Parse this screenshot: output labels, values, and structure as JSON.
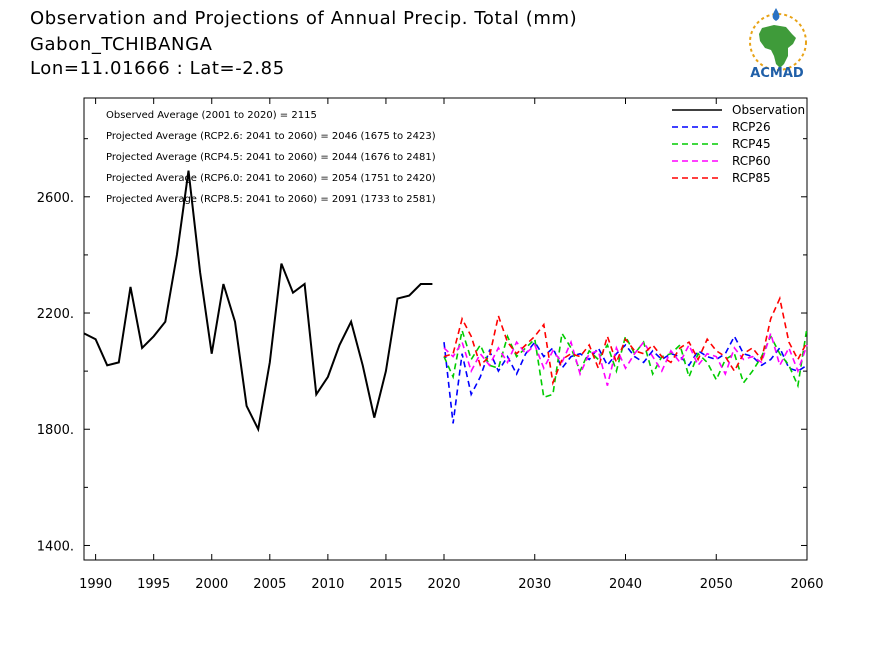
{
  "title": {
    "line1": "Observation and Projections of Annual Precip. Total (mm)",
    "line2": "Gabon_TCHIBANGA",
    "line3": "Lon=11.01666 : Lat=-2.85"
  },
  "logo": {
    "text": "ACMAD",
    "icon": "africa-map-logo-icon"
  },
  "annotations": [
    "Observed Average (2001 to 2020) = 2115",
    "Projected Average (RCP2.6: 2041 to 2060) = 2046 (1675 to 2423)",
    "Projected Average (RCP4.5: 2041 to 2060) = 2044 (1676 to 2481)",
    "Projected Average (RCP6.0: 2041 to 2060) = 2054 (1751 to 2420)",
    "Projected Average (RCP8.5: 2041 to 2060) = 2091 (1733 to 2581)"
  ],
  "chart_data": {
    "type": "line",
    "xlim": [
      1989,
      2060
    ],
    "ylim": [
      1350,
      2940
    ],
    "x_ticks": [
      1990,
      1995,
      2000,
      2005,
      2010,
      2015,
      2020,
      2030,
      2040,
      2050,
      2060
    ],
    "y_ticks": [
      {
        "value": 1400,
        "label": "1400."
      },
      {
        "value": 1800,
        "label": "1800."
      },
      {
        "value": 2200,
        "label": "2200."
      },
      {
        "value": 2600,
        "label": "2600."
      }
    ],
    "y_minor_ticks": [
      1600,
      2000,
      2400,
      2800
    ],
    "legend_position": "top-right",
    "grid": false,
    "series": [
      {
        "name": "Observation",
        "color": "#000000",
        "dash": "solid",
        "x": [
          1989,
          1990,
          1991,
          1992,
          1993,
          1994,
          1995,
          1996,
          1997,
          1998,
          1999,
          2000,
          2001,
          2002,
          2003,
          2004,
          2005,
          2006,
          2007,
          2008,
          2009,
          2010,
          2011,
          2012,
          2013,
          2014,
          2015,
          2016,
          2017,
          2018,
          2019
        ],
        "values": [
          2130,
          2110,
          2020,
          2030,
          2290,
          2080,
          2120,
          2170,
          2400,
          2690,
          2340,
          2060,
          2300,
          2170,
          1880,
          1800,
          2030,
          2370,
          2270,
          2300,
          1920,
          1980,
          2090,
          2170,
          2020,
          1840,
          2000,
          2250,
          2260,
          2300,
          2300
        ]
      },
      {
        "name": "RCP26",
        "color": "#0000ff",
        "dash": "dashed",
        "x": [
          2020,
          2021,
          2022,
          2023,
          2024,
          2025,
          2026,
          2027,
          2028,
          2029,
          2030,
          2031,
          2032,
          2033,
          2034,
          2035,
          2036,
          2037,
          2038,
          2039,
          2040,
          2041,
          2042,
          2043,
          2044,
          2045,
          2046,
          2047,
          2048,
          2049,
          2050,
          2051,
          2052,
          2053,
          2054,
          2055,
          2056,
          2057,
          2058,
          2059,
          2060
        ],
        "values": [
          2100,
          1820,
          2060,
          1920,
          1980,
          2070,
          2000,
          2050,
          1990,
          2060,
          2100,
          2050,
          2080,
          2010,
          2050,
          2060,
          2040,
          2080,
          2020,
          2060,
          2090,
          2050,
          2030,
          2070,
          2040,
          2060,
          2050,
          2020,
          2070,
          2050,
          2040,
          2060,
          2120,
          2060,
          2050,
          2020,
          2040,
          2080,
          2010,
          2000,
          2020
        ]
      },
      {
        "name": "RCP45",
        "color": "#00cc00",
        "dash": "dashed",
        "x": [
          2020,
          2021,
          2022,
          2023,
          2024,
          2025,
          2026,
          2027,
          2028,
          2029,
          2030,
          2031,
          2032,
          2033,
          2034,
          2035,
          2036,
          2037,
          2038,
          2039,
          2040,
          2041,
          2042,
          2043,
          2044,
          2045,
          2046,
          2047,
          2048,
          2049,
          2050,
          2051,
          2052,
          2053,
          2054,
          2055,
          2056,
          2057,
          2058,
          2059,
          2060
        ],
        "values": [
          2050,
          1980,
          2140,
          2040,
          2090,
          2020,
          2010,
          2120,
          2050,
          2080,
          2110,
          1910,
          1920,
          2130,
          2080,
          2000,
          2070,
          2040,
          2090,
          2000,
          2120,
          2060,
          2100,
          1990,
          2050,
          2060,
          2090,
          1980,
          2060,
          2030,
          1970,
          2040,
          2060,
          1960,
          2000,
          2050,
          2120,
          2060,
          2020,
          1950,
          2150
        ]
      },
      {
        "name": "RCP60",
        "color": "#ff00ff",
        "dash": "dashed",
        "x": [
          2020,
          2021,
          2022,
          2023,
          2024,
          2025,
          2026,
          2027,
          2028,
          2029,
          2030,
          2031,
          2032,
          2033,
          2034,
          2035,
          2036,
          2037,
          2038,
          2039,
          2040,
          2041,
          2042,
          2043,
          2044,
          2045,
          2046,
          2047,
          2048,
          2049,
          2050,
          2051,
          2052,
          2053,
          2054,
          2055,
          2056,
          2057,
          2058,
          2059,
          2060
        ],
        "values": [
          2080,
          2050,
          2100,
          2000,
          2060,
          2020,
          2080,
          2030,
          2100,
          2060,
          2090,
          2010,
          2070,
          2030,
          2100,
          1990,
          2060,
          2070,
          1950,
          2080,
          2010,
          2060,
          2100,
          2050,
          2000,
          2070,
          2030,
          2090,
          2020,
          2060,
          2050,
          1990,
          2080,
          2040,
          2050,
          2030,
          2130,
          2020,
          2080,
          2000,
          2090
        ]
      },
      {
        "name": "RCP85",
        "color": "#ff0000",
        "dash": "dashed",
        "x": [
          2020,
          2021,
          2022,
          2023,
          2024,
          2025,
          2026,
          2027,
          2028,
          2029,
          2030,
          2031,
          2032,
          2033,
          2034,
          2035,
          2036,
          2037,
          2038,
          2039,
          2040,
          2041,
          2042,
          2043,
          2044,
          2045,
          2046,
          2047,
          2048,
          2049,
          2050,
          2051,
          2052,
          2053,
          2054,
          2055,
          2056,
          2057,
          2058,
          2059,
          2060
        ],
        "values": [
          2050,
          2060,
          2180,
          2120,
          2020,
          2050,
          2190,
          2100,
          2060,
          2090,
          2120,
          2160,
          1960,
          2040,
          2060,
          2050,
          2090,
          2010,
          2120,
          2030,
          2110,
          2070,
          2060,
          2090,
          2050,
          2030,
          2080,
          2100,
          2040,
          2110,
          2070,
          2050,
          2000,
          2060,
          2080,
          2040,
          2180,
          2250,
          2100,
          2040,
          2100
        ]
      }
    ]
  }
}
